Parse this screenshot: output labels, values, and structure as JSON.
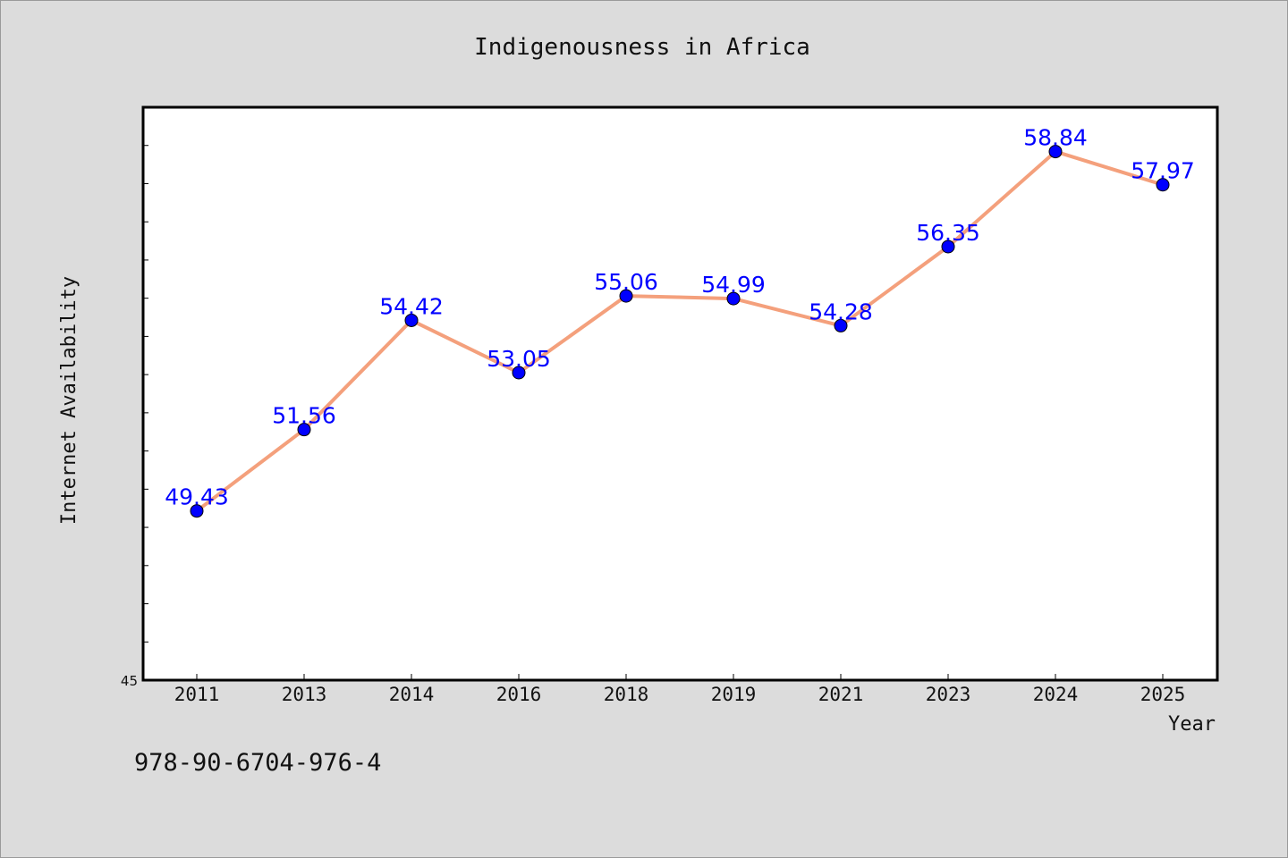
{
  "chart_data": {
    "type": "line",
    "title": "Indigenousness in Africa",
    "xlabel": "Year",
    "ylabel": "Internet Availability",
    "categories": [
      "2011",
      "2013",
      "2014",
      "2016",
      "2018",
      "2019",
      "2021",
      "2023",
      "2024",
      "2025"
    ],
    "series": [
      {
        "values": [
          49.43,
          51.56,
          54.42,
          53.05,
          55.06,
          54.99,
          54.28,
          56.35,
          58.84,
          57.97
        ],
        "line_color": "#f4a07c",
        "marker_color": "#0000ff"
      }
    ],
    "ylim": [
      45,
      60
    ],
    "yticks": [
      45
    ],
    "grid": false,
    "legend": "none"
  },
  "footer": {
    "isbn": "978-90-6704-976-4"
  }
}
